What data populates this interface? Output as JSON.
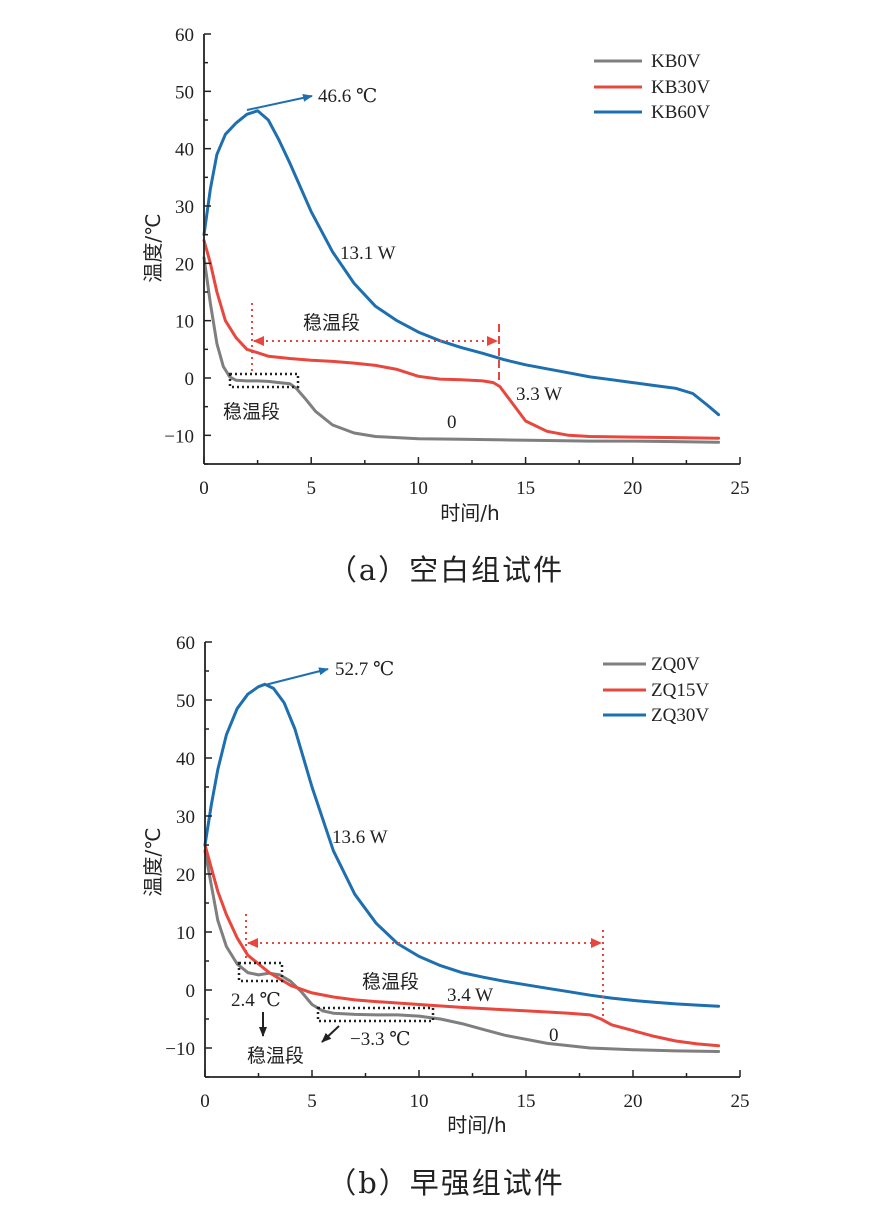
{
  "charts": [
    {
      "caption": "（a）空白组试件",
      "chart_data": {
        "type": "line",
        "xlabel": "时间/h",
        "ylabel": "温度/℃",
        "xlim": [
          0,
          25
        ],
        "ylim": [
          -15,
          60
        ],
        "xticks": [
          0,
          5,
          10,
          15,
          20,
          25
        ],
        "yticks": [
          -10,
          0,
          10,
          20,
          30,
          40,
          50,
          60
        ],
        "legend_position": "top-right",
        "series": [
          {
            "name": "KB0V",
            "color": "#7f7f7f",
            "x": [
              0,
              0.3,
              0.6,
              0.9,
              1.2,
              1.5,
              2,
              2.5,
              3,
              3.5,
              4,
              4.3,
              4.7,
              5.2,
              6,
              7,
              8,
              9,
              10,
              12,
              14,
              16,
              18,
              20,
              22,
              24
            ],
            "y": [
              21,
              13,
              6,
              2,
              0.2,
              -0.4,
              -0.5,
              -0.5,
              -0.6,
              -0.8,
              -1,
              -1.8,
              -3.5,
              -5.8,
              -8.2,
              -9.6,
              -10.2,
              -10.4,
              -10.6,
              -10.7,
              -10.8,
              -10.9,
              -11,
              -11,
              -11.1,
              -11.2
            ]
          },
          {
            "name": "KB30V",
            "color": "#e8473e",
            "x": [
              0,
              0.3,
              0.6,
              1,
              1.5,
              2,
              3,
              4,
              5,
              6,
              7,
              8,
              9,
              10,
              11,
              12,
              13,
              13.5,
              13.8,
              14.3,
              15,
              16,
              17,
              18,
              20,
              22,
              24
            ],
            "y": [
              24,
              20,
              15,
              10,
              7,
              5,
              3.8,
              3.4,
              3.1,
              2.9,
              2.6,
              2.2,
              1.5,
              0.3,
              -0.2,
              -0.3,
              -0.5,
              -0.8,
              -1.5,
              -4,
              -7.5,
              -9.3,
              -10,
              -10.2,
              -10.3,
              -10.4,
              -10.5
            ]
          },
          {
            "name": "KB60V",
            "color": "#1d6fb0",
            "x": [
              0,
              0.3,
              0.6,
              1,
              1.5,
              2,
              2.5,
              3,
              3.5,
              4,
              5,
              6,
              7,
              8,
              9,
              10,
              11,
              12,
              13,
              14,
              15,
              16,
              17,
              18,
              19,
              20,
              21,
              22,
              22.8,
              23.5,
              24
            ],
            "y": [
              25,
              33,
              39,
              42.5,
              44.5,
              46,
              46.6,
              45,
              41.5,
              37.5,
              29,
              22,
              16.5,
              12.5,
              10,
              8,
              6.5,
              5.3,
              4.3,
              3.2,
              2.3,
              1.6,
              0.9,
              0.2,
              -0.3,
              -0.8,
              -1.3,
              -1.8,
              -2.7,
              -4.8,
              -6.4
            ]
          }
        ],
        "annotations": {
          "peak": "46.6 ℃",
          "power_high": "13.1 W",
          "stable_dashed": "稳温段",
          "power_mid": "3.3 W",
          "stable_box": "稳温段",
          "zero": "0"
        }
      }
    },
    {
      "caption": "（b）早强组试件",
      "chart_data": {
        "type": "line",
        "xlabel": "时间/h",
        "ylabel": "温度/℃",
        "xlim": [
          0,
          25
        ],
        "ylim": [
          -15,
          60
        ],
        "xticks": [
          0,
          5,
          10,
          15,
          20,
          25
        ],
        "yticks": [
          -10,
          0,
          10,
          20,
          30,
          40,
          50,
          60
        ],
        "legend_position": "top-right",
        "series": [
          {
            "name": "ZQ0V",
            "color": "#7f7f7f",
            "x": [
              0,
              0.3,
              0.6,
              1,
              1.5,
              2,
              2.5,
              3,
              3.5,
              4,
              4.5,
              5,
              5.5,
              6,
              7,
              8,
              9,
              10,
              11,
              12,
              13,
              14,
              16,
              18,
              20,
              22,
              24
            ],
            "y": [
              24,
              18,
              12,
              7.5,
              4.5,
              3,
              2.6,
              2.9,
              2.6,
              1.5,
              -0.3,
              -2.5,
              -3.6,
              -4,
              -4.2,
              -4.3,
              -4.3,
              -4.5,
              -5,
              -5.8,
              -6.8,
              -7.8,
              -9.2,
              -10,
              -10.3,
              -10.5,
              -10.6
            ]
          },
          {
            "name": "ZQ15V",
            "color": "#e8473e",
            "x": [
              0,
              0.3,
              0.6,
              1,
              1.5,
              2,
              2.5,
              3,
              4,
              5,
              6,
              7,
              8,
              10,
              12,
              14,
              16,
              17,
              18,
              18.5,
              19,
              20,
              21,
              22,
              23,
              24
            ],
            "y": [
              25,
              21,
              17,
              13,
              9,
              6,
              4.5,
              3,
              0.8,
              -0.5,
              -1.2,
              -1.7,
              -2,
              -2.5,
              -3,
              -3.4,
              -3.8,
              -4,
              -4.3,
              -5,
              -6,
              -7,
              -8,
              -8.8,
              -9.3,
              -9.6
            ]
          },
          {
            "name": "ZQ30V",
            "color": "#1d6fb0",
            "x": [
              0,
              0.3,
              0.6,
              1,
              1.5,
              2,
              2.5,
              2.8,
              3.2,
              3.7,
              4.2,
              5,
              6,
              7,
              8,
              9,
              10,
              11,
              12,
              13,
              14,
              15,
              16,
              17,
              18,
              19,
              20,
              21,
              22,
              23,
              24
            ],
            "y": [
              25,
              32,
              38,
              44,
              48.5,
              51,
              52.3,
              52.7,
              52,
              49.5,
              45,
              35,
              24,
              16.5,
              11.5,
              8,
              5.8,
              4.2,
              3,
              2.2,
              1.5,
              0.9,
              0.3,
              -0.3,
              -0.9,
              -1.4,
              -1.8,
              -2.1,
              -2.4,
              -2.6,
              -2.8
            ]
          }
        ],
        "annotations": {
          "peak": "52.7 ℃",
          "power_high": "13.6 W",
          "stable_dashed": "稳温段",
          "power_mid": "3.4 W",
          "box1_temp": "2.4 ℃",
          "stable_box": "稳温段",
          "box2_temp": "−3.3 ℃",
          "zero": "0"
        }
      }
    }
  ]
}
